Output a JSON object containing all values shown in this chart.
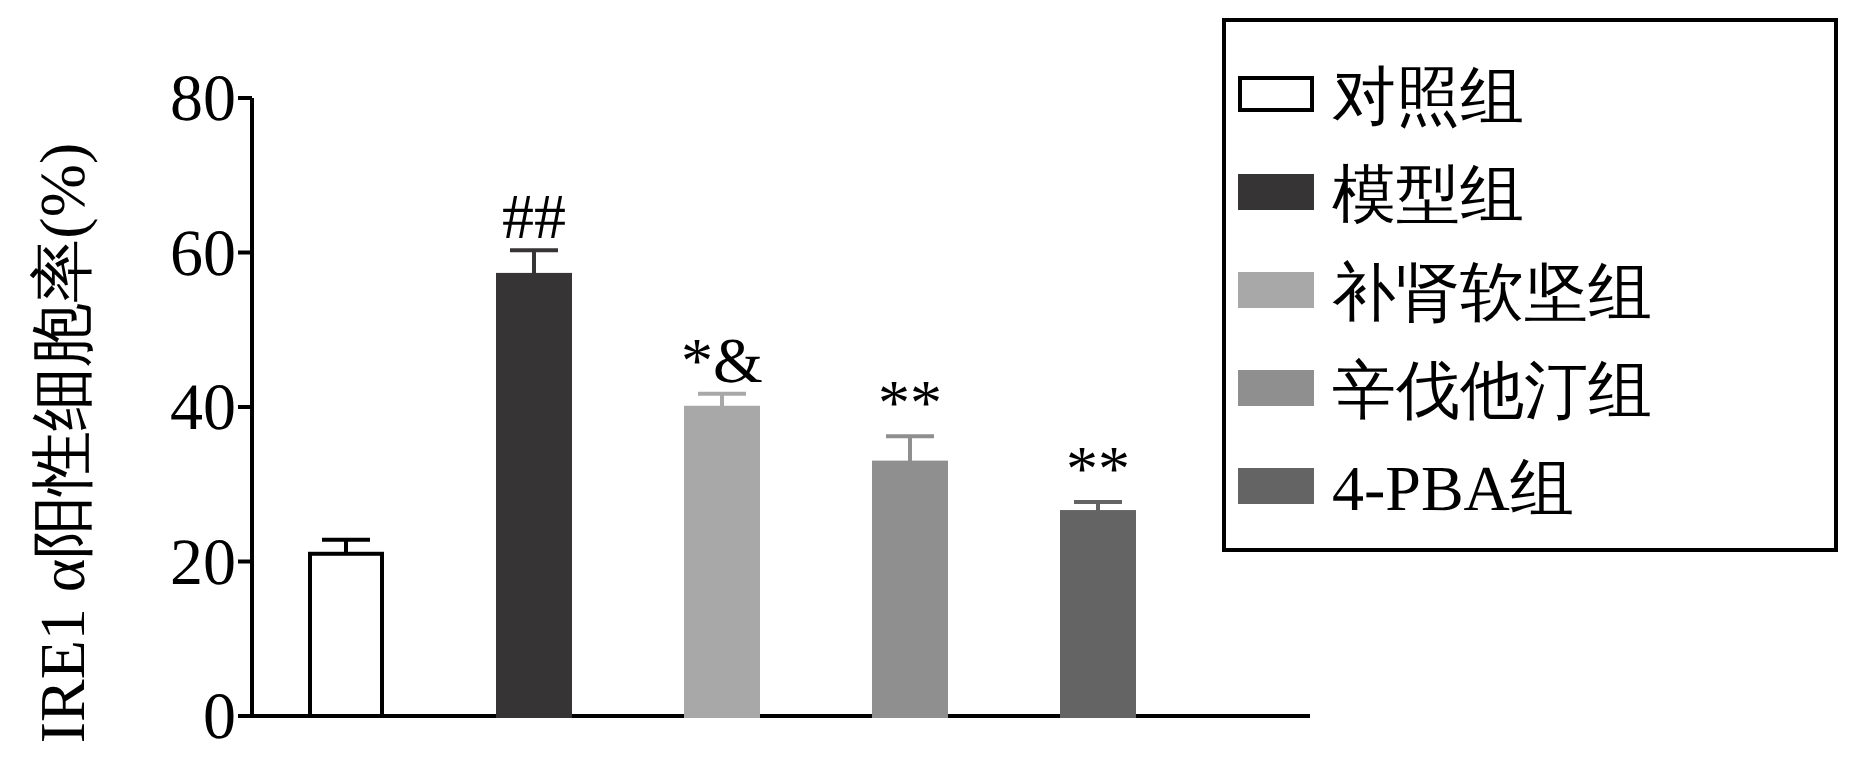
{
  "chart_data": {
    "type": "bar",
    "ylabel": "IRE1 α阳性细胞率(%)",
    "categories": [
      null,
      null,
      null,
      null,
      null
    ],
    "ylim": [
      0,
      80
    ],
    "yticks": [
      0,
      20,
      40,
      60,
      80
    ],
    "legend": "top right",
    "grid": false,
    "series": [
      {
        "name": "对照组",
        "color": "#ffffff",
        "values": [
          21,
          null,
          null,
          null,
          null
        ],
        "errors": [
          1.8,
          null,
          null,
          null,
          null
        ]
      },
      {
        "name": "模型组",
        "color": "#373435",
        "values": [
          null,
          57.1,
          null,
          null,
          null
        ],
        "errors": [
          null,
          3.2,
          null,
          null,
          null
        ]
      },
      {
        "name": "补肾软坚组",
        "color": "#a8a8a8",
        "values": [
          null,
          null,
          39.9,
          null,
          null
        ],
        "errors": [
          null,
          null,
          1.8,
          null,
          null
        ]
      },
      {
        "name": "辛伐他汀组",
        "color": "#8f8f8f",
        "values": [
          null,
          null,
          null,
          32.8,
          null
        ],
        "errors": [
          null,
          null,
          null,
          3.4,
          null
        ]
      },
      {
        "name": "4-PBA组",
        "color": "#646464",
        "values": [
          null,
          null,
          null,
          null,
          26.4
        ],
        "errors": [
          null,
          null,
          null,
          null,
          1.3
        ]
      }
    ],
    "annotations": [
      {
        "text": "##",
        "y": 60.3
      },
      {
        "text": "*&",
        "y": 41.7
      },
      {
        "text": "**",
        "y": 36.2
      },
      {
        "text": "**",
        "y": 27.7
      }
    ]
  }
}
